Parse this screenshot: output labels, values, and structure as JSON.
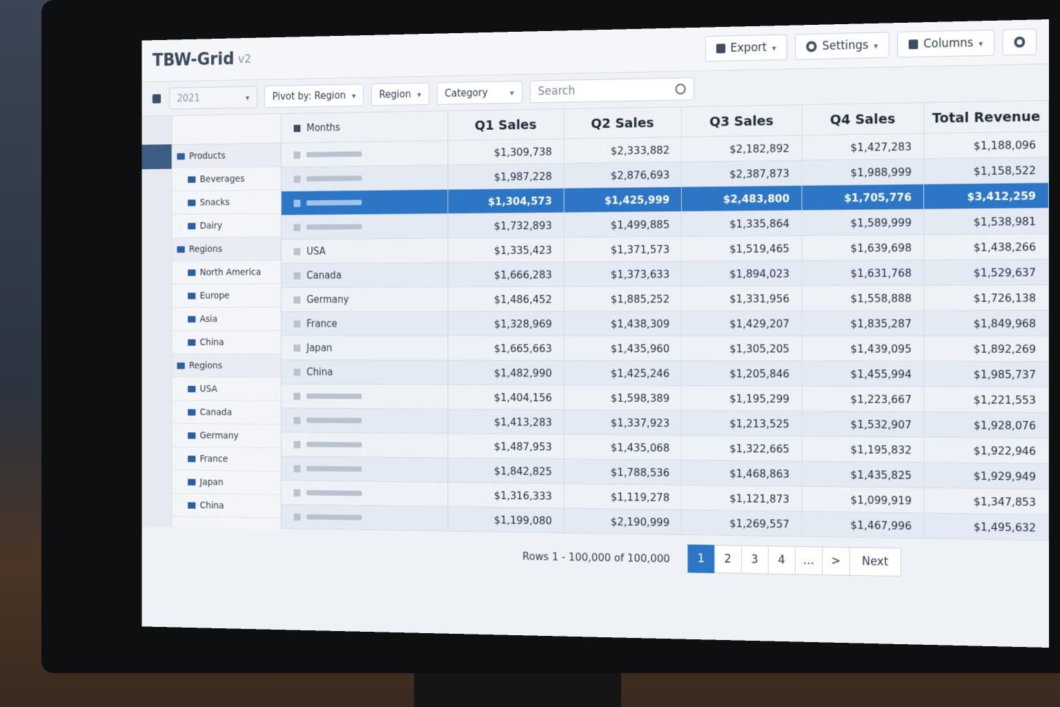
{
  "header": {
    "title": "TBW-Grid",
    "version": "v2"
  },
  "toolbar": {
    "year": "2021",
    "pivot": "Pivot by: Region",
    "region": "Region",
    "category": "Category",
    "search_placeholder": "Search",
    "export": "Export",
    "settings": "Settings",
    "columns": "Columns"
  },
  "sidebar": {
    "groups": [
      {
        "label": "Products",
        "children": [
          {
            "label": "Beverages"
          },
          {
            "label": "Snacks"
          },
          {
            "label": "Dairy"
          }
        ]
      },
      {
        "label": "Regions",
        "children": [
          {
            "label": "North America"
          },
          {
            "label": "Europe"
          },
          {
            "label": "Asia"
          },
          {
            "label": "China"
          }
        ]
      },
      {
        "label": "Regions",
        "children": [
          {
            "label": "USA"
          },
          {
            "label": "Canada"
          },
          {
            "label": "Germany"
          },
          {
            "label": "France"
          },
          {
            "label": "Japan"
          },
          {
            "label": "China"
          }
        ]
      }
    ]
  },
  "grid": {
    "row_header": "Months",
    "columns": [
      "Q1 Sales",
      "Q2 Sales",
      "Q3 Sales",
      "Q4 Sales",
      "Total Revenue"
    ],
    "selected_row": 2,
    "rows": [
      {
        "label": null,
        "cells": [
          "$1,309,738",
          "$2,333,882",
          "$2,182,892",
          "$1,427,283",
          "$1,188,096"
        ]
      },
      {
        "label": null,
        "cells": [
          "$1,987,228",
          "$2,876,693",
          "$2,387,873",
          "$1,988,999",
          "$1,158,522"
        ]
      },
      {
        "label": null,
        "cells": [
          "$1,304,573",
          "$1,425,999",
          "$2,483,800",
          "$1,705,776",
          "$3,412,259"
        ]
      },
      {
        "label": null,
        "cells": [
          "$1,732,893",
          "$1,499,885",
          "$1,335,864",
          "$1,589,999",
          "$1,538,981"
        ]
      },
      {
        "label": "USA",
        "cells": [
          "$1,335,423",
          "$1,371,573",
          "$1,519,465",
          "$1,639,698",
          "$1,438,266"
        ]
      },
      {
        "label": "Canada",
        "cells": [
          "$1,666,283",
          "$1,373,633",
          "$1,894,023",
          "$1,631,768",
          "$1,529,637"
        ]
      },
      {
        "label": "Germany",
        "cells": [
          "$1,486,452",
          "$1,885,252",
          "$1,331,956",
          "$1,558,888",
          "$1,726,138"
        ]
      },
      {
        "label": "France",
        "cells": [
          "$1,328,969",
          "$1,438,309",
          "$1,429,207",
          "$1,835,287",
          "$1,849,968"
        ]
      },
      {
        "label": "Japan",
        "cells": [
          "$1,665,663",
          "$1,435,960",
          "$1,305,205",
          "$1,439,095",
          "$1,892,269"
        ]
      },
      {
        "label": "China",
        "cells": [
          "$1,482,990",
          "$1,425,246",
          "$1,205,846",
          "$1,455,994",
          "$1,985,737"
        ]
      },
      {
        "label": null,
        "cells": [
          "$1,404,156",
          "$1,598,389",
          "$1,195,299",
          "$1,223,667",
          "$1,221,553"
        ]
      },
      {
        "label": null,
        "cells": [
          "$1,413,283",
          "$1,337,923",
          "$1,213,525",
          "$1,532,907",
          "$1,928,076"
        ]
      },
      {
        "label": null,
        "cells": [
          "$1,487,953",
          "$1,435,068",
          "$1,322,665",
          "$1,195,832",
          "$1,922,946"
        ]
      },
      {
        "label": null,
        "cells": [
          "$1,842,825",
          "$1,788,536",
          "$1,468,863",
          "$1,435,825",
          "$1,929,949"
        ]
      },
      {
        "label": null,
        "cells": [
          "$1,316,333",
          "$1,119,278",
          "$1,121,873",
          "$1,099,919",
          "$1,347,853"
        ]
      },
      {
        "label": null,
        "cells": [
          "$1,199,080",
          "$2,190,999",
          "$1,269,557",
          "$1,467,996",
          "$1,495,632"
        ]
      }
    ]
  },
  "pagination": {
    "summary": "Rows 1 - 100,000 of 100,000",
    "pages": [
      "1",
      "2",
      "3",
      "4",
      "…"
    ],
    "current": 0,
    "arrow": ">",
    "next": "Next"
  }
}
